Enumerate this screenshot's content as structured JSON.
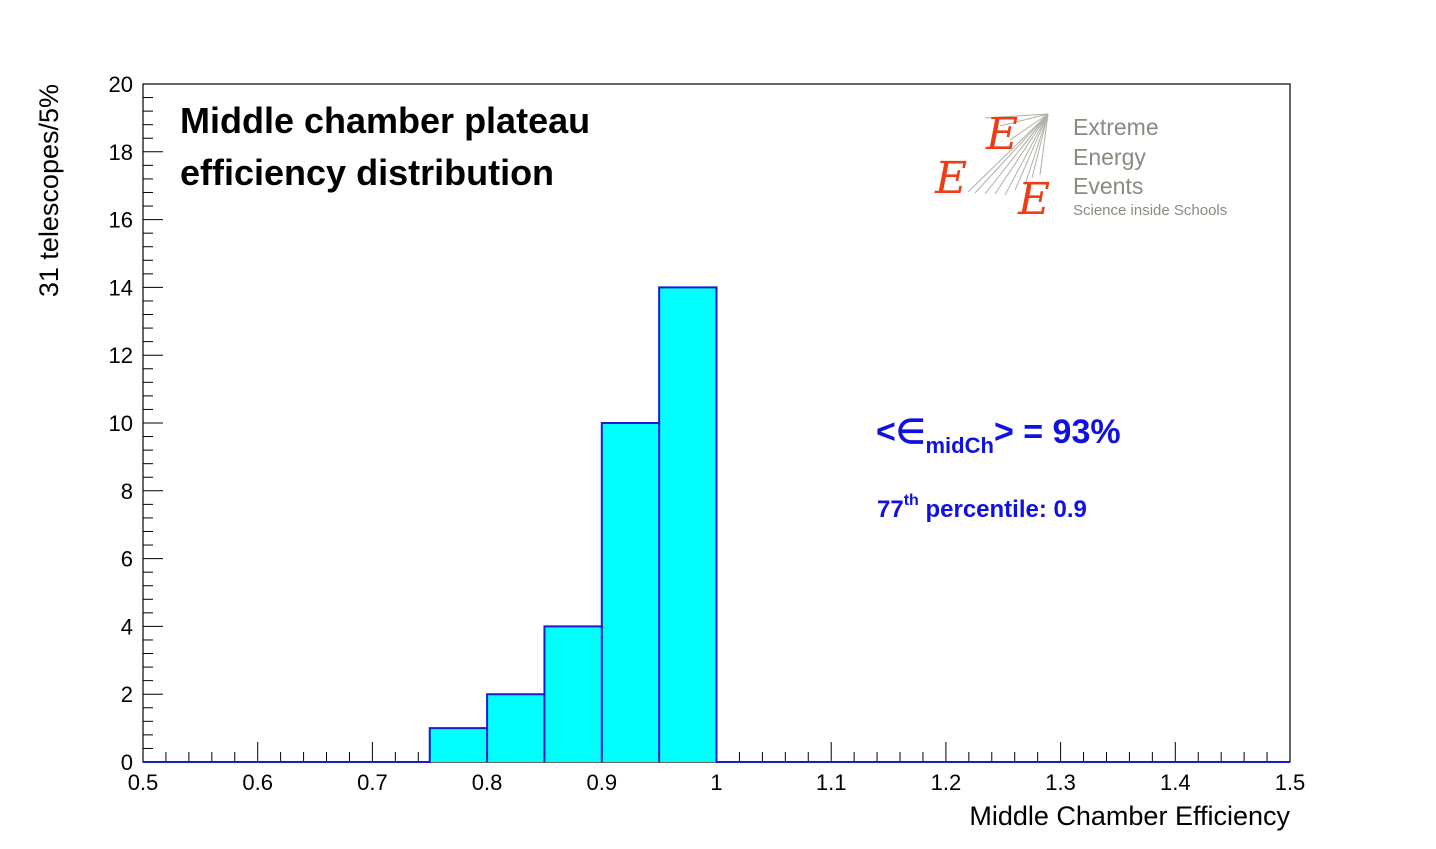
{
  "chart_data": {
    "type": "bar",
    "title_lines": [
      "Middle chamber plateau",
      "efficiency distribution"
    ],
    "xlabel": "Middle Chamber Efficiency",
    "ylabel": "31 telescopes/5%",
    "xlim": [
      0.5,
      1.5
    ],
    "ylim": [
      0,
      20
    ],
    "x_ticks": [
      "0.5",
      "0.6",
      "0.7",
      "0.8",
      "0.9",
      "1",
      "1.1",
      "1.2",
      "1.3",
      "1.4",
      "1.5"
    ],
    "y_ticks": [
      "0",
      "2",
      "4",
      "6",
      "8",
      "10",
      "12",
      "14",
      "16",
      "18",
      "20"
    ],
    "bin_width": 0.05,
    "bins": [
      {
        "x0": 0.75,
        "x1": 0.8,
        "value": 1
      },
      {
        "x0": 0.8,
        "x1": 0.85,
        "value": 2
      },
      {
        "x0": 0.85,
        "x1": 0.9,
        "value": 4
      },
      {
        "x0": 0.9,
        "x1": 0.95,
        "value": 10
      },
      {
        "x0": 0.95,
        "x1": 1.0,
        "value": 14
      }
    ],
    "fill_color": "#00ffff",
    "line_color": "#1a1ad0",
    "annotations": {
      "mean": {
        "prefix": "<∈",
        "subscript": "midCh",
        "suffix": "> = 93%"
      },
      "percentile": {
        "number": "77",
        "superscript": "th",
        "text": " percentile: 0.9"
      }
    },
    "annotation_color": "#1010e0"
  },
  "logo": {
    "lines": [
      "Extreme",
      "Energy",
      "Events"
    ],
    "tagline": "Science inside Schools",
    "letter": "E",
    "letter_color": "#f03c14",
    "text_color": "#8a8a80"
  }
}
